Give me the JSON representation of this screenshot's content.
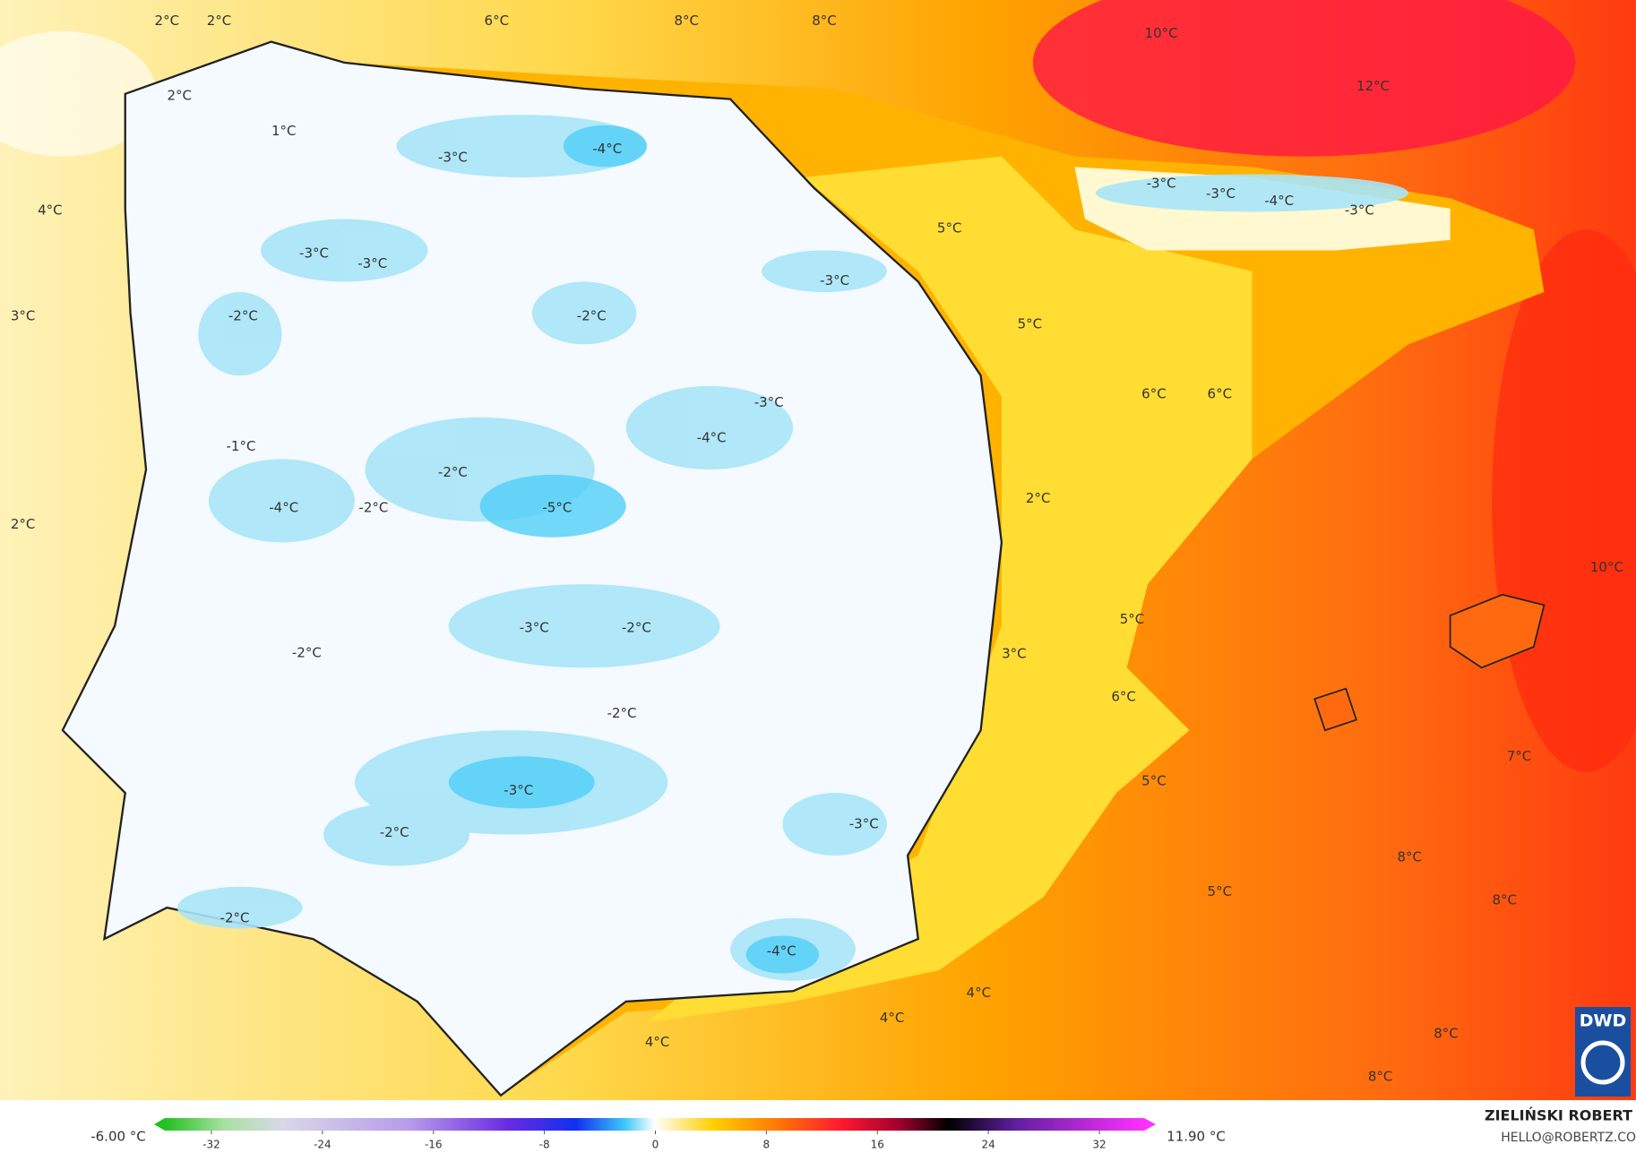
{
  "map": {
    "labels": [
      "2°C",
      "2°C",
      "6°C",
      "8°C",
      "8°C",
      "10°C",
      "12°C",
      "2°C",
      "1°C",
      "-3°C",
      "-4°C",
      "4°C",
      "-3°C",
      "-3°C",
      "-4°C",
      "-3°C",
      "5°C",
      "-3°C",
      "-3°C",
      "-3°C",
      "3°C",
      "-2°C",
      "-2°C",
      "5°C",
      "6°C",
      "6°C",
      "-3°C",
      "-4°C",
      "-1°C",
      "-2°C",
      "2°C",
      "-4°C",
      "-2°C",
      "-5°C",
      "2°C",
      "10°C",
      "5°C",
      "-3°C",
      "-2°C",
      "-2°C",
      "3°C",
      "6°C",
      "-2°C",
      "7°C",
      "5°C",
      "-3°C",
      "-3°C",
      "-2°C",
      "8°C",
      "5°C",
      "8°C",
      "-2°C",
      "-4°C",
      "4°C",
      "4°C",
      "4°C",
      "8°C",
      "8°C"
    ],
    "logo": "DWD"
  },
  "legend": {
    "min_label": "-6.00 °C",
    "max_label": "11.90 °C",
    "ticks": [
      -32,
      -24,
      -16,
      -8,
      0,
      8,
      16,
      24,
      32
    ]
  },
  "credit": {
    "name": "ZIELIŃSKI ROBERT",
    "email": "HELLO@ROBERTZ.CO"
  }
}
